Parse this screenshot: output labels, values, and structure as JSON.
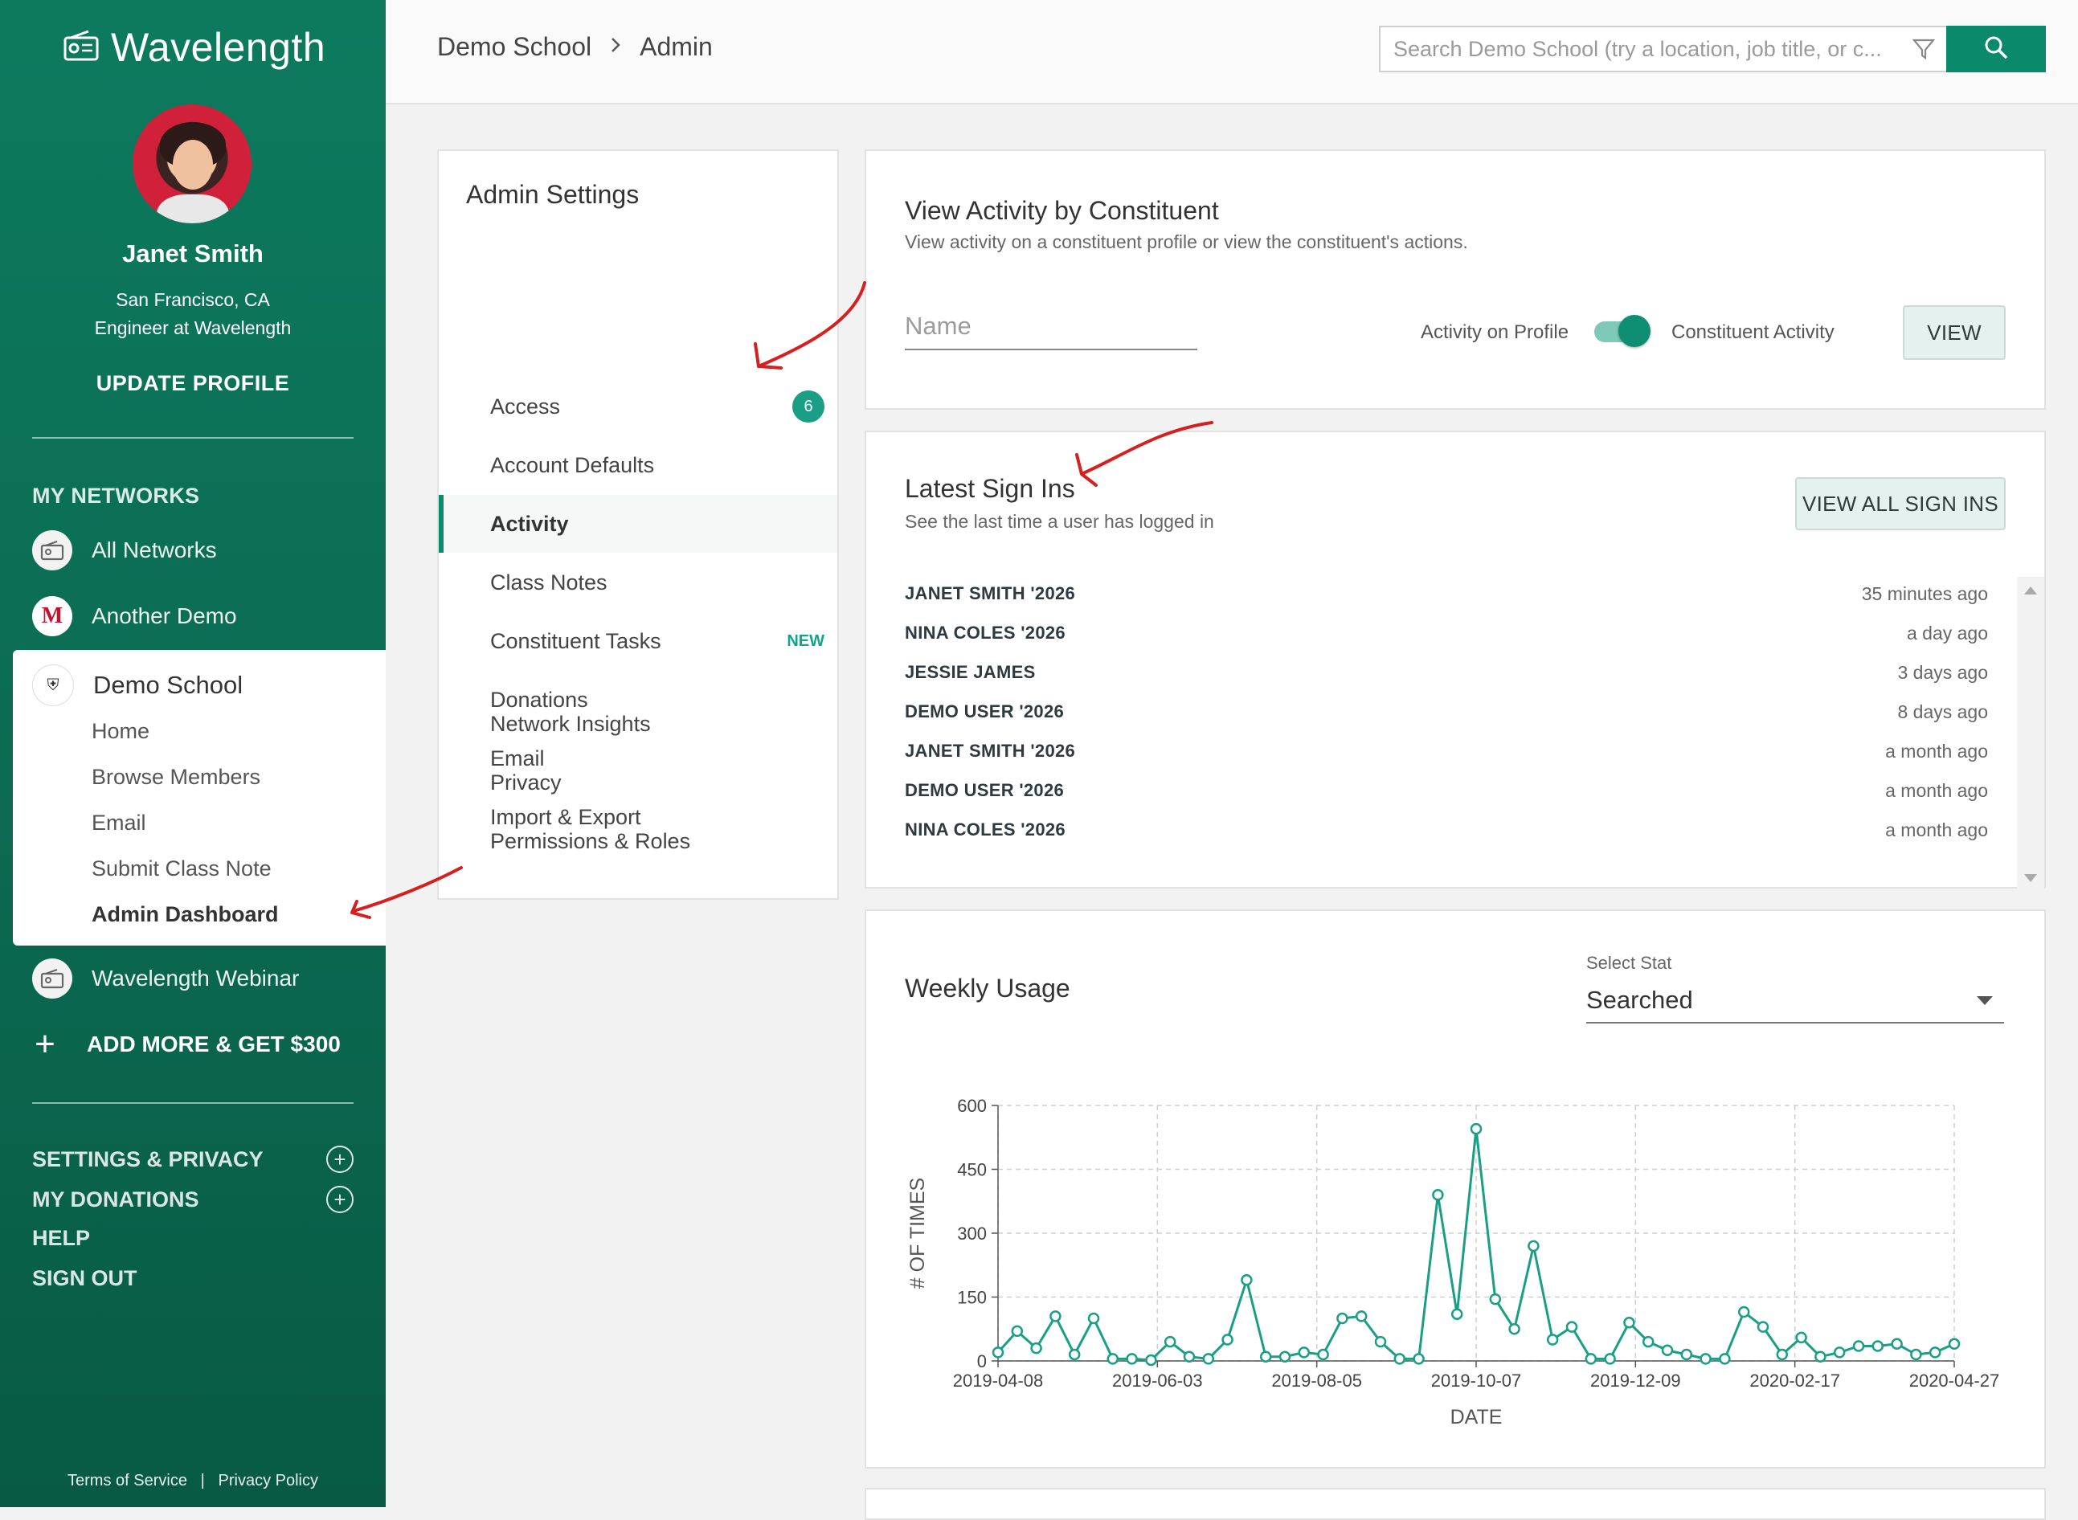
{
  "sidebar": {
    "brand": "Wavelength",
    "user_name": "Janet Smith",
    "user_location": "San Francisco, CA",
    "user_role": "Engineer at Wavelength",
    "update_profile": "UPDATE PROFILE",
    "my_networks_heading": "MY NETWORKS",
    "networks": [
      {
        "label": "All Networks",
        "icon": "radio-icon"
      },
      {
        "label": "Another Demo",
        "icon": "m-logo-icon"
      }
    ],
    "demo_school": {
      "label": "Demo School",
      "sub_items": [
        "Home",
        "Browse Members",
        "Email",
        "Submit Class Note",
        "Admin Dashboard"
      ],
      "active": "Admin Dashboard"
    },
    "webinar": {
      "label": "Wavelength Webinar"
    },
    "add_more": "ADD MORE & GET $300",
    "settings_privacy": "SETTINGS & PRIVACY",
    "my_donations": "MY DONATIONS",
    "help": "HELP",
    "sign_out": "SIGN OUT",
    "terms": "Terms of Service",
    "separator": "|",
    "privacy_policy": "Privacy Policy"
  },
  "topbar": {
    "breadcrumb": [
      "Demo School",
      "Admin"
    ],
    "search_placeholder": "Search Demo School (try a location, job title, or c...",
    "icons": [
      "filter-icon",
      "search-icon",
      "chevron-right-icon"
    ]
  },
  "admin_menu": {
    "title": "Admin Settings",
    "items": [
      {
        "label": "Access",
        "badge": "6"
      },
      {
        "label": "Account Defaults"
      },
      {
        "label": "Activity",
        "active": true
      },
      {
        "label": "Class Notes"
      },
      {
        "label": "Constituent Tasks",
        "tag": "NEW"
      },
      {
        "label": "Donations"
      },
      {
        "label": "Email"
      },
      {
        "label": "Import & Export"
      },
      {
        "label": "Network Insights"
      },
      {
        "label": "Privacy"
      },
      {
        "label": "Permissions & Roles"
      }
    ]
  },
  "view_activity": {
    "title": "View Activity by Constituent",
    "subtitle": "View activity on a constituent profile or view the constituent's actions.",
    "name_placeholder": "Name",
    "toggle_left": "Activity on Profile",
    "toggle_right": "Constituent Activity",
    "toggle_on": true,
    "view_button": "VIEW"
  },
  "latest_sign_ins": {
    "title": "Latest Sign Ins",
    "subtitle": "See the last time a user has logged in",
    "view_all_button": "VIEW ALL SIGN INS",
    "rows": [
      {
        "name": "JANET SMITH '2026",
        "time": "35 minutes ago"
      },
      {
        "name": "NINA COLES '2026",
        "time": "a day ago"
      },
      {
        "name": "JESSIE JAMES",
        "time": "3 days ago"
      },
      {
        "name": "DEMO USER '2026",
        "time": "8 days ago"
      },
      {
        "name": "JANET SMITH '2026",
        "time": "a month ago"
      },
      {
        "name": "DEMO USER '2026",
        "time": "a month ago"
      },
      {
        "name": "NINA COLES '2026",
        "time": "a month ago"
      }
    ]
  },
  "weekly_usage": {
    "title": "Weekly Usage",
    "select_label": "Select Stat",
    "select_value": "Searched"
  },
  "colors": {
    "sidebar": "#0b6a51",
    "accent": "#0b8a6b",
    "line": "#1a9e86",
    "annotation_arrow": "#d61f1f"
  },
  "chart_data": {
    "type": "line",
    "xlabel": "DATE",
    "ylabel": "# OF TIMES",
    "ylim": [
      0,
      600
    ],
    "yticks": [
      0,
      150,
      300,
      450,
      600
    ],
    "xtick_labels": [
      "2019-04-08",
      "2019-06-03",
      "2019-08-05",
      "2019-10-07",
      "2019-12-09",
      "2020-02-17",
      "2020-04-27"
    ],
    "grid": true,
    "series": [
      {
        "values": [
          20,
          70,
          30,
          105,
          15,
          100,
          5,
          5,
          2,
          45,
          10,
          5,
          50,
          190,
          10,
          10,
          20,
          15,
          100,
          105,
          45,
          5,
          5,
          390,
          110,
          545,
          145,
          75,
          270,
          50,
          80,
          5,
          5,
          90,
          45,
          25,
          15,
          5,
          5,
          115,
          80,
          15,
          55,
          10,
          20,
          35,
          35,
          40,
          15,
          20,
          40
        ]
      }
    ]
  }
}
